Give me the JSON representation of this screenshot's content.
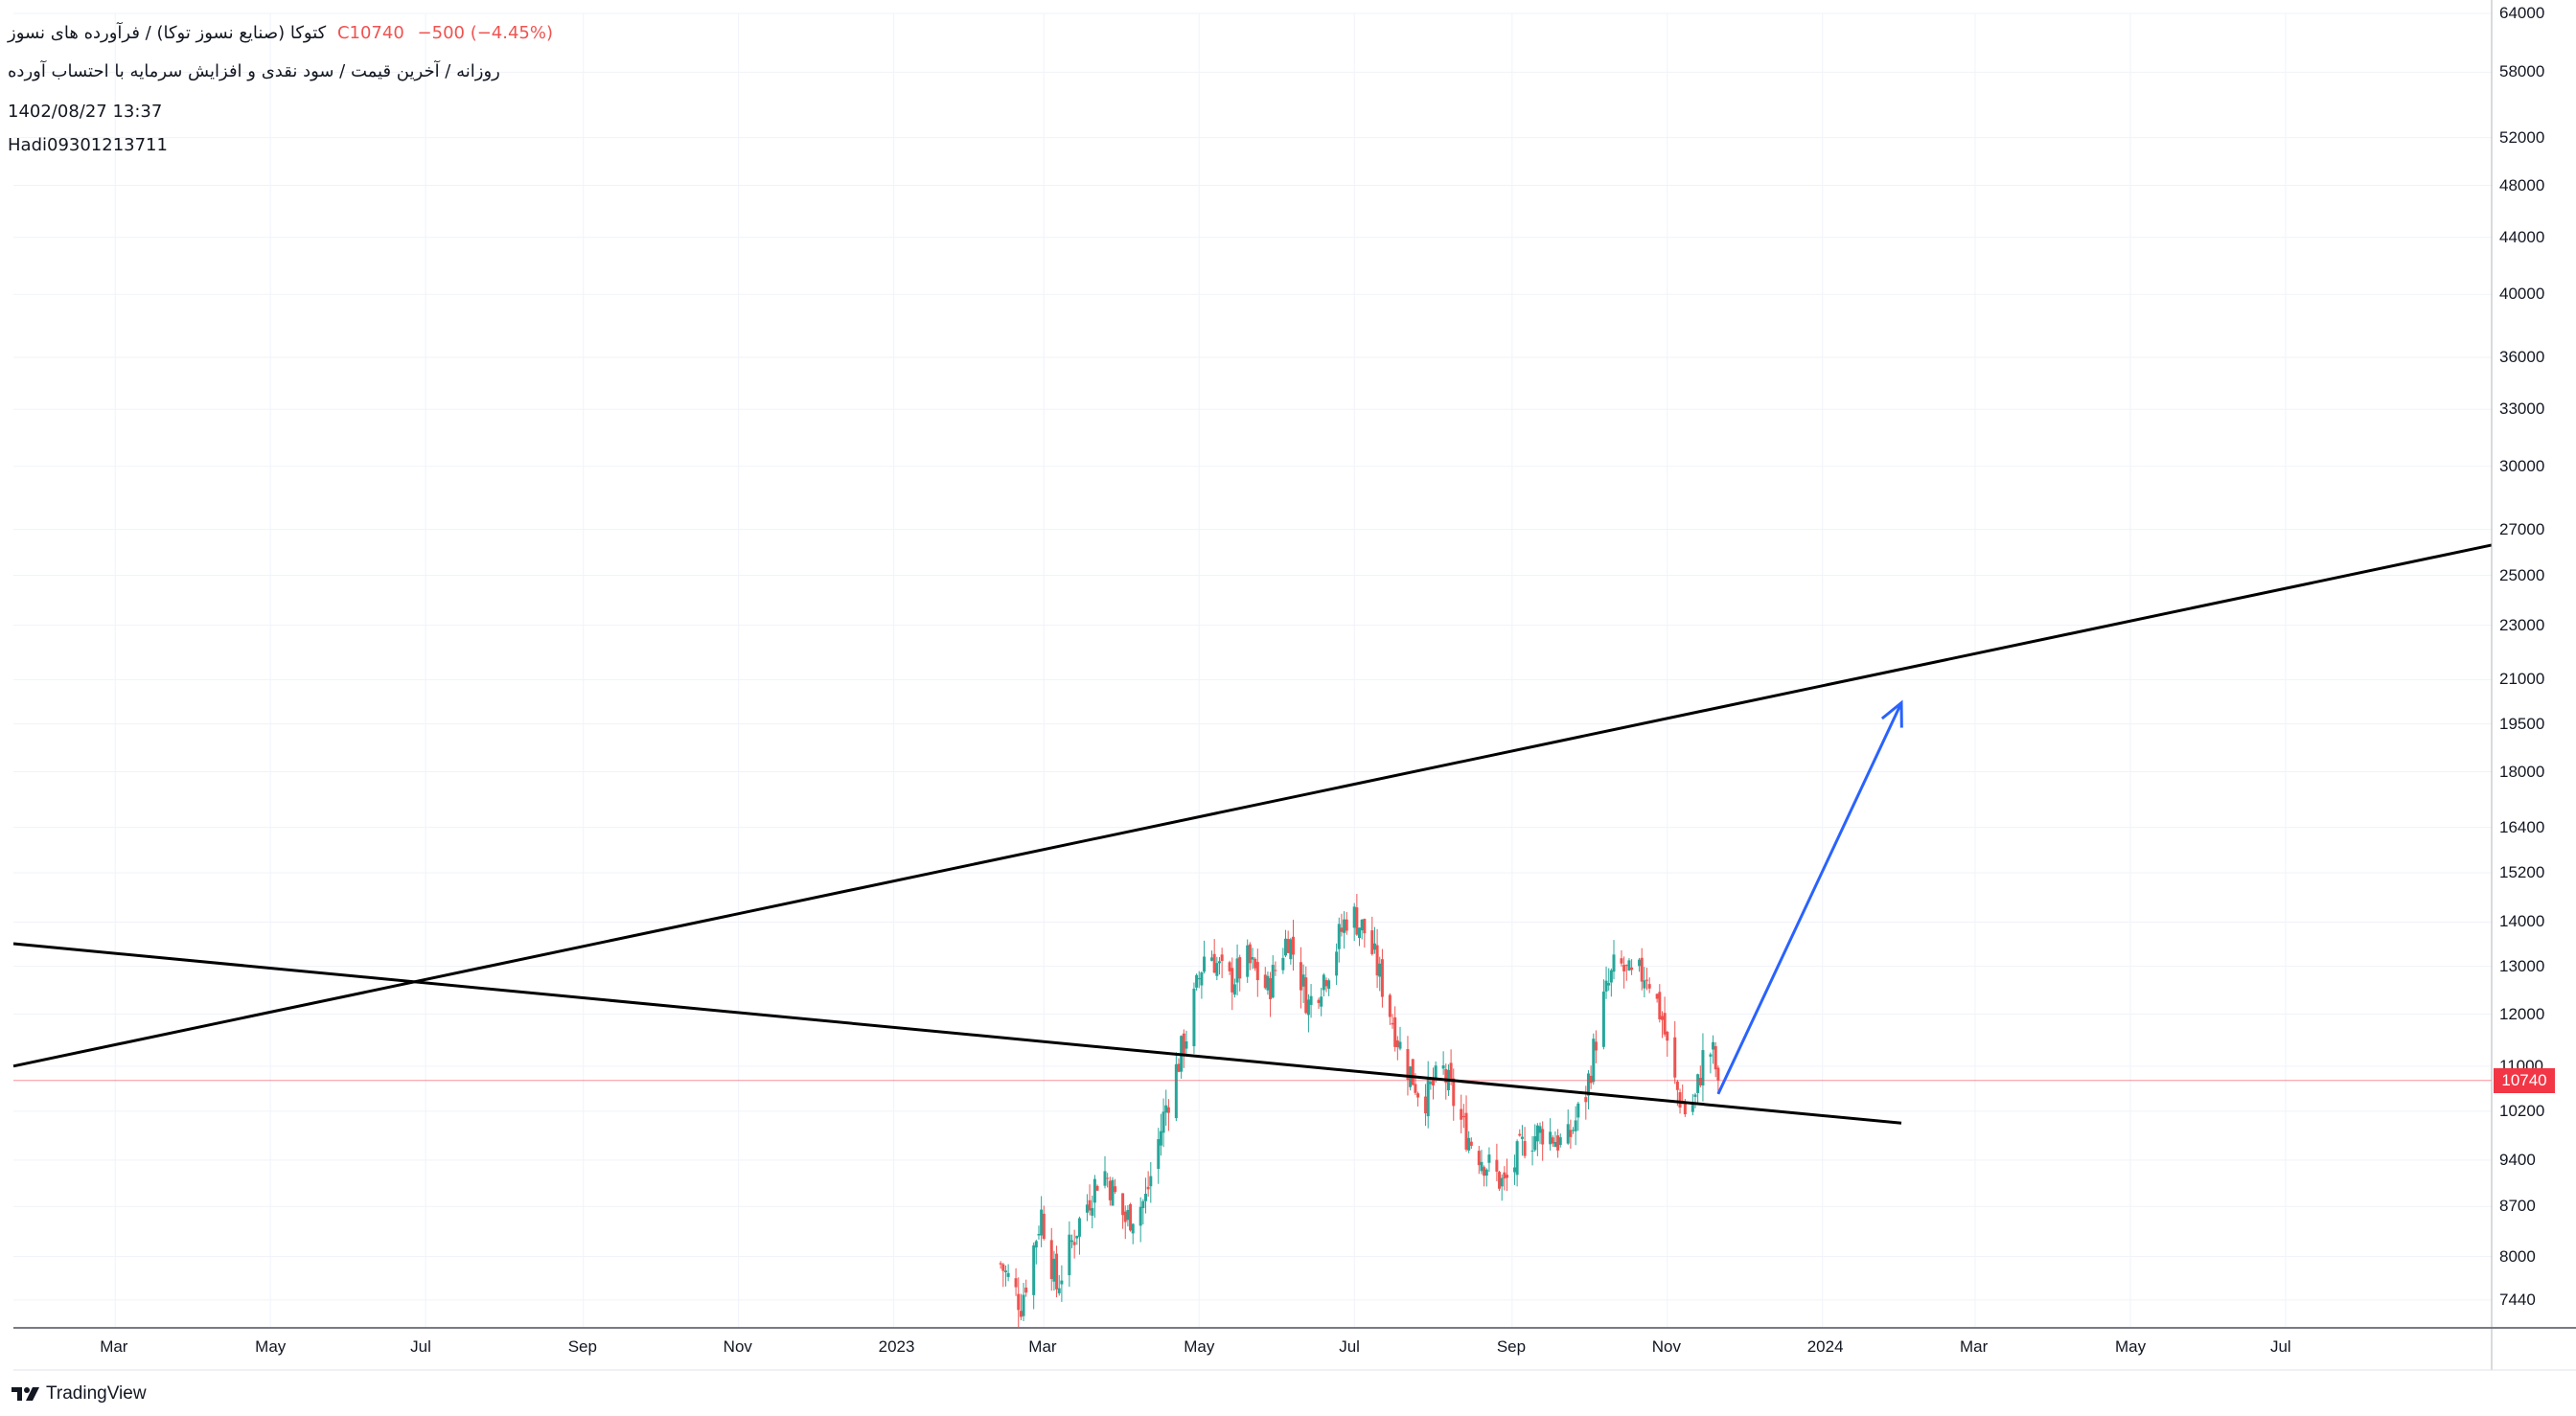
{
  "header": {
    "title_prefix": "کتوکا (صنایع نسوز توکا) / فرآورده های نسوز",
    "price_label": "C10740",
    "change_label": "−500 (−4.45%)",
    "subtitle": "روزانه / آخرین قیمت / سود نقدی و افزایش سرمایه با احتساب آورده",
    "date": "1402/08/27 13:37",
    "user": "Hadi09301213711"
  },
  "branding": {
    "name": "TradingView",
    "icon": "tradingview-logo-icon"
  },
  "last_price_tag": "10740",
  "colors": {
    "up": "#26a69a",
    "down": "#ef5350",
    "trendline": "#000000",
    "arrow": "#2962ff",
    "price_line": "#f23645"
  },
  "chart_data": {
    "type": "candlestick",
    "y_scale": "log",
    "ylim": [
      7100,
      64000
    ],
    "xlim": [
      "2022-01-20",
      "2024-09-20"
    ],
    "y_ticks": [
      "64000",
      "58000",
      "52000",
      "48000",
      "44000",
      "40000",
      "36000",
      "33000",
      "30000",
      "27000",
      "25000",
      "23000",
      "21000",
      "19500",
      "18000",
      "16400",
      "15200",
      "14000",
      "13000",
      "12000",
      "11000",
      "10200",
      "9400",
      "8700",
      "8000",
      "7440"
    ],
    "x_ticks": [
      {
        "label": "Mar",
        "date": "2022-03-01"
      },
      {
        "label": "May",
        "date": "2022-05-01"
      },
      {
        "label": "Jul",
        "date": "2022-07-01"
      },
      {
        "label": "Sep",
        "date": "2022-09-01"
      },
      {
        "label": "Nov",
        "date": "2022-11-01"
      },
      {
        "label": "2023",
        "date": "2023-01-01"
      },
      {
        "label": "Mar",
        "date": "2023-03-01"
      },
      {
        "label": "May",
        "date": "2023-05-01"
      },
      {
        "label": "Jul",
        "date": "2023-07-01"
      },
      {
        "label": "Sep",
        "date": "2023-09-01"
      },
      {
        "label": "Nov",
        "date": "2023-11-01"
      },
      {
        "label": "2024",
        "date": "2024-01-01"
      },
      {
        "label": "Mar",
        "date": "2024-03-01"
      },
      {
        "label": "May",
        "date": "2024-05-01"
      },
      {
        "label": "Jul",
        "date": "2024-07-01"
      }
    ],
    "last_price": 10740,
    "price_path": [
      [
        "2023-02-12",
        7900
      ],
      [
        "2023-02-20",
        7400
      ],
      [
        "2023-02-28",
        8600
      ],
      [
        "2023-03-06",
        7600
      ],
      [
        "2023-03-14",
        8400
      ],
      [
        "2023-03-24",
        9300
      ],
      [
        "2023-04-02",
        8500
      ],
      [
        "2023-04-10",
        8800
      ],
      [
        "2023-04-18",
        10300
      ],
      [
        "2023-04-26",
        11600
      ],
      [
        "2023-05-04",
        13500
      ],
      [
        "2023-05-12",
        12600
      ],
      [
        "2023-05-20",
        13100
      ],
      [
        "2023-05-28",
        12500
      ],
      [
        "2023-06-05",
        13700
      ],
      [
        "2023-06-13",
        12200
      ],
      [
        "2023-06-21",
        13000
      ],
      [
        "2023-06-29",
        14300
      ],
      [
        "2023-07-06",
        13700
      ],
      [
        "2023-07-12",
        12600
      ],
      [
        "2023-07-20",
        11200
      ],
      [
        "2023-07-28",
        10400
      ],
      [
        "2023-08-05",
        10900
      ],
      [
        "2023-08-13",
        9900
      ],
      [
        "2023-08-21",
        9400
      ],
      [
        "2023-08-29",
        9000
      ],
      [
        "2023-09-06",
        9700
      ],
      [
        "2023-09-14",
        9900
      ],
      [
        "2023-09-22",
        9600
      ],
      [
        "2023-09-30",
        10500
      ],
      [
        "2023-10-06",
        12100
      ],
      [
        "2023-10-12",
        13100
      ],
      [
        "2023-10-18",
        12700
      ],
      [
        "2023-10-24",
        12900
      ],
      [
        "2023-10-30",
        11900
      ],
      [
        "2023-11-03",
        10800
      ],
      [
        "2023-11-08",
        10200
      ],
      [
        "2023-11-12",
        10400
      ],
      [
        "2023-11-16",
        11400
      ],
      [
        "2023-11-19",
        11200
      ],
      [
        "2023-11-21",
        10740
      ]
    ],
    "trendlines": [
      {
        "name": "descending-trendline",
        "from": [
          "2022-01-20",
          13500
        ],
        "to": [
          "2024-02-01",
          10000
        ]
      },
      {
        "name": "ascending-trendline",
        "from": [
          "2022-01-20",
          11000
        ],
        "to": [
          "2024-09-20",
          26300
        ]
      }
    ],
    "arrow": {
      "from": [
        "2023-11-21",
        10500
      ],
      "to": [
        "2024-02-01",
        20200
      ]
    }
  }
}
